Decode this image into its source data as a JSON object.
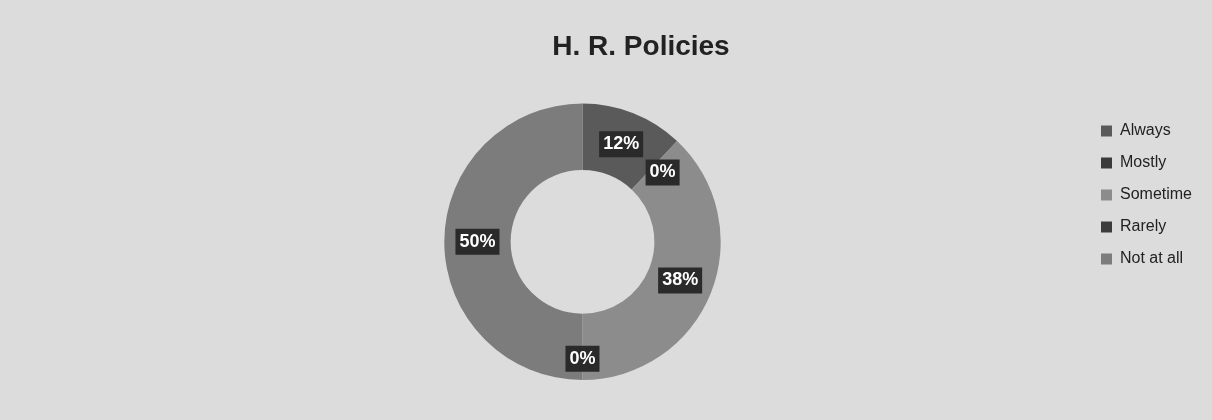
{
  "chart_data": {
    "type": "donut",
    "title": "H. R. Policies",
    "categories": [
      "Always",
      "Mostly",
      "Sometime",
      "Rarely",
      "Not at all"
    ],
    "values": [
      12,
      0,
      38,
      0,
      50
    ],
    "value_labels": [
      "12%",
      "0%",
      "38%",
      "0%",
      "50%"
    ],
    "colors": [
      "#5a5a5a",
      "#3a3a3a",
      "#8c8c8c",
      "#3c3c3c",
      "#7c7c7c"
    ],
    "legend": "right"
  }
}
